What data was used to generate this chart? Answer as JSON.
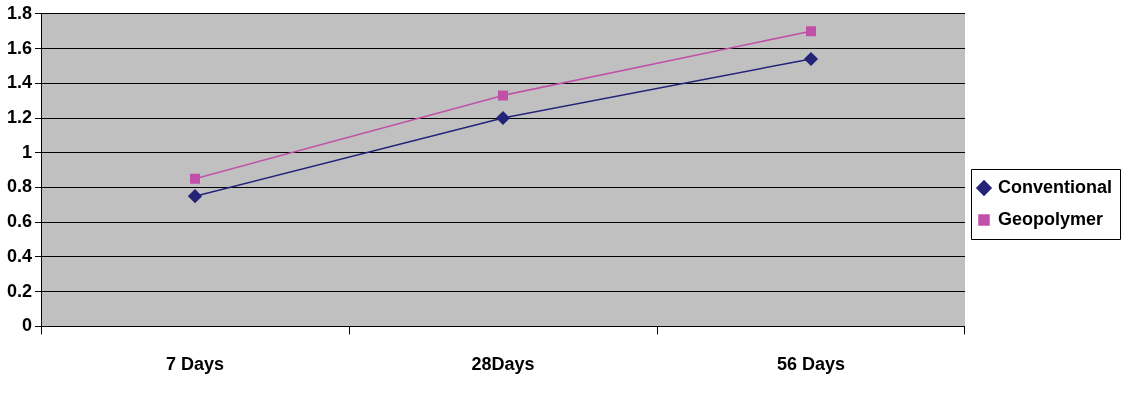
{
  "chart_data": {
    "type": "line",
    "categories": [
      "7 Days",
      "28Days",
      "56 Days"
    ],
    "series": [
      {
        "name": "Conventional",
        "color": "#232378",
        "marker": "diamond",
        "values": [
          0.75,
          1.2,
          1.54
        ]
      },
      {
        "name": "Geopolymer",
        "color": "#c050a8",
        "marker": "square",
        "values": [
          0.85,
          1.33,
          1.7
        ]
      }
    ],
    "ylim": [
      0,
      1.8
    ],
    "yticks": [
      0,
      0.2,
      0.4,
      0.6,
      0.8,
      1,
      1.2,
      1.4,
      1.6,
      1.8
    ],
    "grid": "y",
    "legend": "right"
  }
}
